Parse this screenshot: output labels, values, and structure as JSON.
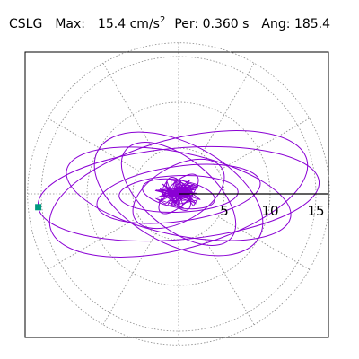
{
  "header": {
    "station": "CSLG",
    "max_label": "Max:",
    "max_value": "15.4",
    "max_unit": "cm/s",
    "max_unit_exp": "2",
    "per_label": "Per:",
    "per_value": "0.360 s",
    "ang_label": "Ang:",
    "ang_value": "185.4"
  },
  "colors": {
    "trace": "#8a00d4",
    "grid": "#8a8a8a",
    "marker": "#009980",
    "axis": "#000000"
  },
  "chart_data": {
    "type": "line",
    "title": "",
    "xlabel": "",
    "ylabel": "",
    "radial_ticks": [
      "5",
      "10",
      "15"
    ],
    "radial_tick_values": [
      5,
      10,
      15
    ],
    "rmax": 16.5,
    "grid_circles": [
      5,
      10,
      15
    ],
    "grid_spokes_deg": [
      0,
      30,
      60,
      90,
      120,
      150,
      180,
      210,
      240,
      270,
      300,
      330
    ],
    "max_accel": 15.4,
    "period_s": 0.36,
    "angle_deg": 185.4,
    "marker_angle_deg": 185.4,
    "marker_radius": 15.4,
    "ellipses": [
      {
        "a": 15.4,
        "b": 5.0,
        "rot": 5
      },
      {
        "a": 14.5,
        "b": 6.0,
        "rot": 15
      },
      {
        "a": 12.5,
        "b": 4.5,
        "rot": -12
      },
      {
        "a": 10.0,
        "b": 5.5,
        "rot": -28
      },
      {
        "a": 9.0,
        "b": 3.0,
        "rot": 8
      },
      {
        "a": 7.5,
        "b": 3.8,
        "rot": -40
      },
      {
        "a": 6.5,
        "b": 2.0,
        "rot": 2
      },
      {
        "a": 5.5,
        "b": 3.0,
        "rot": 30
      },
      {
        "a": 4.0,
        "b": 1.5,
        "rot": -10
      },
      {
        "a": 2.8,
        "b": 1.2,
        "rot": 45
      },
      {
        "a": 2.0,
        "b": 1.0,
        "rot": -60
      }
    ]
  }
}
